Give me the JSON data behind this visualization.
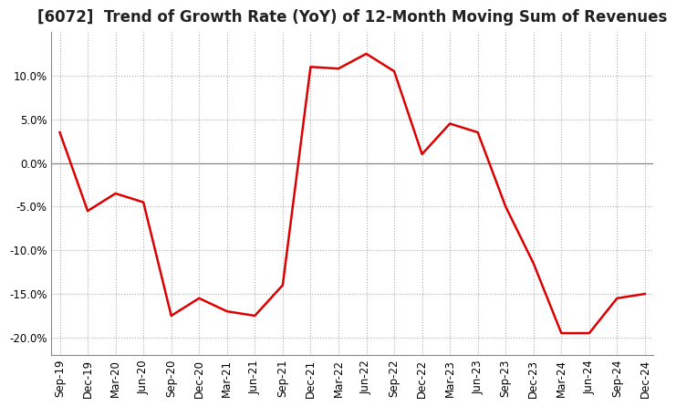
{
  "title": "[6072]  Trend of Growth Rate (YoY) of 12-Month Moving Sum of Revenues",
  "x_labels": [
    "Sep-19",
    "Dec-19",
    "Mar-20",
    "Jun-20",
    "Sep-20",
    "Dec-20",
    "Mar-21",
    "Jun-21",
    "Sep-21",
    "Dec-21",
    "Mar-22",
    "Jun-22",
    "Sep-22",
    "Dec-22",
    "Mar-23",
    "Jun-23",
    "Sep-23",
    "Dec-23",
    "Mar-24",
    "Jun-24",
    "Sep-24",
    "Dec-24"
  ],
  "y_values": [
    3.5,
    -5.5,
    -3.5,
    -4.5,
    -17.5,
    -15.5,
    -17.0,
    -17.5,
    -14.0,
    11.0,
    10.8,
    12.5,
    10.5,
    1.0,
    4.5,
    3.5,
    -5.0,
    -11.5,
    -19.5,
    -19.5,
    -15.5,
    -15.0
  ],
  "line_color": "#dd0000",
  "background_color": "#ffffff",
  "grid_color": "#aaaaaa",
  "zero_line_color": "#888888",
  "border_color": "#888888",
  "ylim": [
    -22,
    15
  ],
  "yticks": [
    -20,
    -15,
    -10,
    -5,
    0,
    5,
    10
  ],
  "title_fontsize": 12,
  "tick_fontsize": 8.5
}
